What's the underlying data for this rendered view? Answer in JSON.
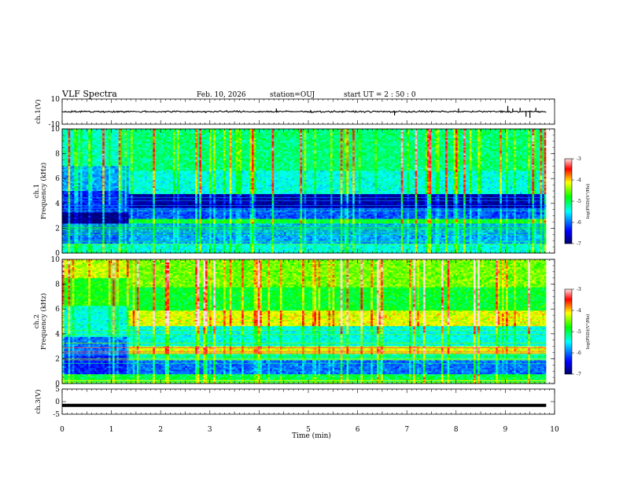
{
  "header": {
    "title": "VLF Spectra",
    "date": "Feb. 10, 2026",
    "station": "station=OUJ",
    "start": "start UT =  2 : 50 : 0"
  },
  "colors": {
    "colormap": [
      "#00006b",
      "#0000ff",
      "#00ffff",
      "#00ff00",
      "#ffff00",
      "#ff0000",
      "#ffe0e0"
    ],
    "trace": "#000000"
  },
  "chart_data": [
    {
      "type": "line",
      "panel": "ch1-waveform",
      "ylabel": "ch.1(V)",
      "ylim": [
        -10,
        10
      ],
      "yticks": [
        {
          "v": 10,
          "t": "10"
        },
        {
          "v": -10,
          "t": "-10"
        }
      ],
      "baseline": 0,
      "noise_amplitude": 1,
      "spikes": [
        {
          "x": 4.35,
          "y": 2.5
        },
        {
          "x": 6.75,
          "y": -3
        },
        {
          "x": 8.05,
          "y": 2.5
        },
        {
          "x": 9.05,
          "y": 4.5
        },
        {
          "x": 9.15,
          "y": 2.5
        },
        {
          "x": 9.3,
          "y": 3
        },
        {
          "x": 9.42,
          "y": -4
        },
        {
          "x": 9.5,
          "y": -5
        },
        {
          "x": 9.62,
          "y": 3
        }
      ]
    },
    {
      "type": "heatmap",
      "panel": "ch1-spectrogram",
      "ylabel_line1": "ch.1",
      "ylabel_line2": "Frequency (kHz)",
      "ylim": [
        0,
        10
      ],
      "yticks": [
        0,
        2,
        4,
        6,
        8,
        10
      ],
      "x_end": 9.83,
      "change_time": 1.37,
      "colorbar": {
        "label": "log(PSD)(V²/Hz)",
        "ticks": [
          -3,
          -4,
          -5,
          -6,
          -7
        ],
        "range": [
          -7,
          -3
        ]
      },
      "bands_before": [
        {
          "from": 0,
          "to": 0.8,
          "level": -5.3
        },
        {
          "from": 0.8,
          "to": 2.4,
          "level": -6.0
        },
        {
          "from": 2.4,
          "to": 3.2,
          "level": -6.95
        },
        {
          "from": 3.2,
          "to": 5.0,
          "level": -6.3
        },
        {
          "from": 5.0,
          "to": 7.0,
          "level": -5.8
        },
        {
          "from": 7.0,
          "to": 10,
          "level": -5.3
        }
      ],
      "bands_after": [
        {
          "from": 0,
          "to": 0.8,
          "level": -5.4
        },
        {
          "from": 0.8,
          "to": 2.4,
          "level": -5.8
        },
        {
          "from": 2.4,
          "to": 2.75,
          "level": -4.9
        },
        {
          "from": 2.75,
          "to": 3.6,
          "level": -6.1
        },
        {
          "from": 3.6,
          "to": 4.7,
          "level": -6.75
        },
        {
          "from": 4.7,
          "to": 6.6,
          "level": -5.4
        },
        {
          "from": 6.6,
          "to": 10,
          "level": -5.1
        }
      ]
    },
    {
      "type": "heatmap",
      "panel": "ch2-spectrogram",
      "ylabel_line1": "ch.2",
      "ylabel_line2": "Frequency (kHz)",
      "ylim": [
        0,
        10
      ],
      "yticks": [
        0,
        2,
        4,
        6,
        8,
        10
      ],
      "x_end": 9.83,
      "change_time": 1.37,
      "colorbar": {
        "label": "log(PSD)(V²/Hz)",
        "ticks": [
          -3,
          -4,
          -5,
          -6,
          -7
        ],
        "range": [
          -7,
          -3
        ]
      },
      "bands_before": [
        {
          "from": 0,
          "to": 0.8,
          "level": -5.0
        },
        {
          "from": 0.8,
          "to": 2.2,
          "level": -6.3
        },
        {
          "from": 2.2,
          "to": 3.8,
          "level": -6.0
        },
        {
          "from": 3.8,
          "to": 6.2,
          "level": -5.4
        },
        {
          "from": 6.2,
          "to": 8.5,
          "level": -4.8
        },
        {
          "from": 8.5,
          "to": 10,
          "level": -4.3
        }
      ],
      "bands_after": [
        {
          "from": 0,
          "to": 0.7,
          "level": -5.0
        },
        {
          "from": 0.7,
          "to": 1.9,
          "level": -6.0
        },
        {
          "from": 1.9,
          "to": 2.4,
          "level": -5.2
        },
        {
          "from": 2.4,
          "to": 3.0,
          "level": -4.2
        },
        {
          "from": 3.0,
          "to": 4.6,
          "level": -5.4
        },
        {
          "from": 4.6,
          "to": 5.9,
          "level": -4.2
        },
        {
          "from": 5.9,
          "to": 7.8,
          "level": -4.9
        },
        {
          "from": 7.8,
          "to": 10,
          "level": -4.5
        }
      ]
    },
    {
      "type": "line",
      "panel": "ch3-waveform",
      "ylabel": "ch.3(V)",
      "ylim": [
        -5,
        5
      ],
      "yticks": [
        {
          "v": 5,
          "t": "5"
        },
        {
          "v": 0,
          "t": "0"
        },
        {
          "v": -5,
          "t": "-5"
        }
      ],
      "value": -1.5,
      "xlabel": "Time (min)",
      "xlim": [
        0,
        10
      ],
      "xticks": [
        0,
        1,
        2,
        3,
        4,
        5,
        6,
        7,
        8,
        9,
        10
      ]
    }
  ]
}
